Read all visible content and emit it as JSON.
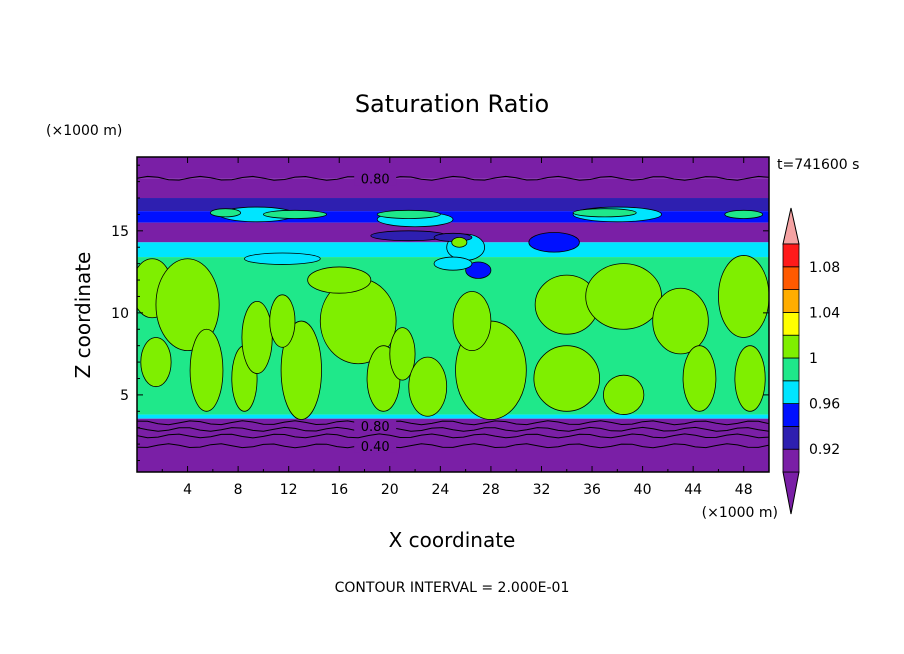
{
  "chart_data": {
    "type": "heatmap",
    "title": "Saturation Ratio",
    "xlabel": "X coordinate",
    "ylabel": "Z coordinate",
    "x_unit": "(×1000 m)",
    "y_unit": "(×1000 m)",
    "time_label": "t=741600 s",
    "footer": "CONTOUR INTERVAL = 2.000E-01",
    "xlim": [
      0,
      50
    ],
    "ylim": [
      0.3,
      19.5
    ],
    "x_ticks": [
      "4",
      "8",
      "12",
      "16",
      "20",
      "24",
      "28",
      "32",
      "36",
      "40",
      "44",
      "48"
    ],
    "y_ticks": [
      "5",
      "10",
      "15"
    ],
    "contour_labels": [
      {
        "text": "0.80",
        "x": 17.5,
        "z": 18.2
      },
      {
        "text": "0.80",
        "x": 17.5,
        "z": 3.1
      },
      {
        "text": "0.40",
        "x": 17.5,
        "z": 1.9
      }
    ],
    "colorbar": {
      "levels": [
        0.9,
        0.92,
        0.94,
        0.96,
        0.98,
        1.0,
        1.02,
        1.04,
        1.06,
        1.08,
        1.1
      ],
      "tick_labels": [
        "1.08",
        "1.04",
        "1",
        "0.96",
        "0.92"
      ],
      "colors": [
        "#7a1fa6",
        "#2e1fb0",
        "#0010ff",
        "#00e5ff",
        "#1fe88a",
        "#7fef00",
        "#ffff00",
        "#ffad00",
        "#ff5a00",
        "#ff1a1a"
      ],
      "under_color": "#7a1fa6",
      "over_color": "#f5a3a3"
    },
    "bands": [
      {
        "z0": 18.2,
        "z1": 19.5,
        "value": 0.85
      },
      {
        "z0": 17.0,
        "z1": 18.2,
        "value": 0.89
      },
      {
        "z0": 16.2,
        "z1": 17.0,
        "value": 0.93
      },
      {
        "z0": 15.5,
        "z1": 16.2,
        "value": 0.95
      },
      {
        "z0": 14.3,
        "z1": 15.5,
        "value": 0.91
      },
      {
        "z0": 13.4,
        "z1": 14.3,
        "value": 0.97
      },
      {
        "z0": 3.8,
        "z1": 13.4,
        "value": 0.99
      },
      {
        "z0": 3.55,
        "z1": 3.8,
        "value": 0.97
      },
      {
        "z0": 0.3,
        "z1": 3.55,
        "value": 0.6
      }
    ],
    "blobs": [
      {
        "x": 1.2,
        "z": 11.5,
        "rx": 1.6,
        "rz": 1.8,
        "value": 1.01
      },
      {
        "x": 4.0,
        "z": 10.5,
        "rx": 2.5,
        "rz": 2.8,
        "value": 1.01
      },
      {
        "x": 1.5,
        "z": 7.0,
        "rx": 1.2,
        "rz": 1.5,
        "value": 1.01
      },
      {
        "x": 5.5,
        "z": 6.5,
        "rx": 1.3,
        "rz": 2.5,
        "value": 1.01
      },
      {
        "x": 8.5,
        "z": 6.0,
        "rx": 1.0,
        "rz": 2.0,
        "value": 1.01
      },
      {
        "x": 9.5,
        "z": 8.5,
        "rx": 1.2,
        "rz": 2.2,
        "value": 1.01
      },
      {
        "x": 13.0,
        "z": 6.5,
        "rx": 1.6,
        "rz": 3.0,
        "value": 1.01
      },
      {
        "x": 11.5,
        "z": 9.5,
        "rx": 1.0,
        "rz": 1.6,
        "value": 1.01
      },
      {
        "x": 17.5,
        "z": 9.5,
        "rx": 3.0,
        "rz": 2.6,
        "value": 1.01
      },
      {
        "x": 19.5,
        "z": 6.0,
        "rx": 1.3,
        "rz": 2.0,
        "value": 1.01
      },
      {
        "x": 21.0,
        "z": 7.5,
        "rx": 1.0,
        "rz": 1.6,
        "value": 1.01
      },
      {
        "x": 23.0,
        "z": 5.5,
        "rx": 1.5,
        "rz": 1.8,
        "value": 1.01
      },
      {
        "x": 16.0,
        "z": 12.0,
        "rx": 2.5,
        "rz": 0.8,
        "value": 1.01
      },
      {
        "x": 28.0,
        "z": 6.5,
        "rx": 2.8,
        "rz": 3.0,
        "value": 1.01
      },
      {
        "x": 26.5,
        "z": 9.5,
        "rx": 1.5,
        "rz": 1.8,
        "value": 1.01
      },
      {
        "x": 34.0,
        "z": 10.5,
        "rx": 2.5,
        "rz": 1.8,
        "value": 1.01
      },
      {
        "x": 34.0,
        "z": 6.0,
        "rx": 2.6,
        "rz": 2.0,
        "value": 1.01
      },
      {
        "x": 38.5,
        "z": 5.0,
        "rx": 1.6,
        "rz": 1.2,
        "value": 1.01
      },
      {
        "x": 38.5,
        "z": 11.0,
        "rx": 3.0,
        "rz": 2.0,
        "value": 1.01
      },
      {
        "x": 43.0,
        "z": 9.5,
        "rx": 2.2,
        "rz": 2.0,
        "value": 1.01
      },
      {
        "x": 44.5,
        "z": 6.0,
        "rx": 1.3,
        "rz": 2.0,
        "value": 1.01
      },
      {
        "x": 48.0,
        "z": 11.0,
        "rx": 2.0,
        "rz": 2.5,
        "value": 1.01
      },
      {
        "x": 48.5,
        "z": 6.0,
        "rx": 1.2,
        "rz": 2.0,
        "value": 1.01
      },
      {
        "x": 9.5,
        "z": 16.0,
        "rx": 3.0,
        "rz": 0.45,
        "value": 0.97
      },
      {
        "x": 22.0,
        "z": 15.7,
        "rx": 3.0,
        "rz": 0.45,
        "value": 0.97
      },
      {
        "x": 38.0,
        "z": 16.0,
        "rx": 3.5,
        "rz": 0.45,
        "value": 0.97
      },
      {
        "x": 7.0,
        "z": 16.1,
        "rx": 1.2,
        "rz": 0.25,
        "value": 0.99
      },
      {
        "x": 12.5,
        "z": 16.0,
        "rx": 2.5,
        "rz": 0.25,
        "value": 0.99
      },
      {
        "x": 21.5,
        "z": 16.0,
        "rx": 2.5,
        "rz": 0.25,
        "value": 0.99
      },
      {
        "x": 37.0,
        "z": 16.1,
        "rx": 2.5,
        "rz": 0.25,
        "value": 0.99
      },
      {
        "x": 48.0,
        "z": 16.0,
        "rx": 1.5,
        "rz": 0.25,
        "value": 0.99
      },
      {
        "x": 26.0,
        "z": 14.0,
        "rx": 1.5,
        "rz": 0.8,
        "value": 0.97
      },
      {
        "x": 33.0,
        "z": 14.3,
        "rx": 2.0,
        "rz": 0.6,
        "value": 0.95
      },
      {
        "x": 27.0,
        "z": 12.6,
        "rx": 1.0,
        "rz": 0.5,
        "value": 0.95
      },
      {
        "x": 21.5,
        "z": 14.7,
        "rx": 3.0,
        "rz": 0.3,
        "value": 0.93
      },
      {
        "x": 25.0,
        "z": 14.6,
        "rx": 1.5,
        "rz": 0.25,
        "value": 0.93
      },
      {
        "x": 25.5,
        "z": 14.3,
        "rx": 0.6,
        "rz": 0.3,
        "value": 1.01
      },
      {
        "x": 11.5,
        "z": 13.3,
        "rx": 3.0,
        "rz": 0.35,
        "value": 0.97
      },
      {
        "x": 25.0,
        "z": 13.0,
        "rx": 1.5,
        "rz": 0.4,
        "value": 0.97
      }
    ]
  }
}
